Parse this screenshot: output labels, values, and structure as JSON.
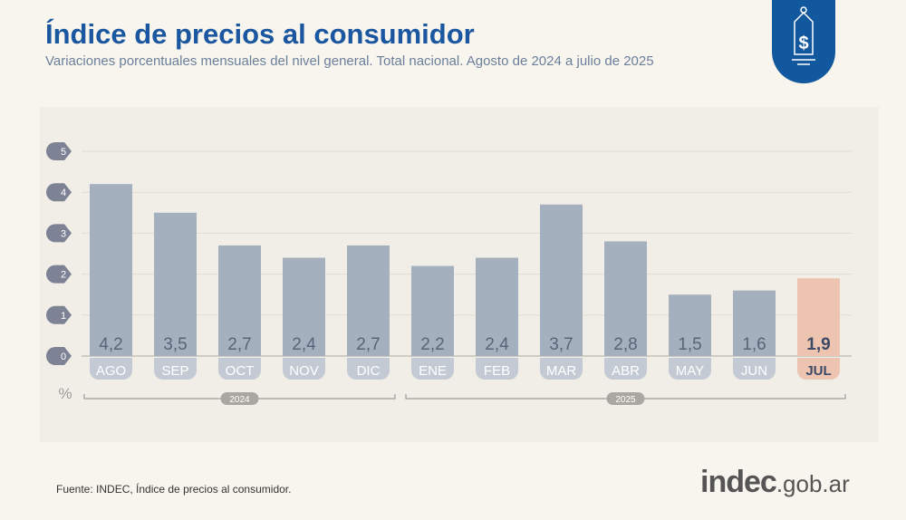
{
  "header": {
    "title": "Índice de precios al consumidor",
    "subtitle": "Variaciones porcentuales mensuales del nivel general. Total nacional. Agosto de 2024 a julio de 2025"
  },
  "footer": {
    "source": "Fuente: INDEC, Índice de precios al consumidor.",
    "brand_main": "indec",
    "brand_suffix": ".gob.ar"
  },
  "logo": {
    "icon": "price-tag-dollar-icon",
    "color": "#12589e"
  },
  "chart_data": {
    "type": "bar",
    "categories": [
      "AGO",
      "SEP",
      "OCT",
      "NOV",
      "DIC",
      "ENE",
      "FEB",
      "MAR",
      "ABR",
      "MAY",
      "JUN",
      "JUL"
    ],
    "values": [
      4.2,
      3.5,
      2.7,
      2.4,
      2.7,
      2.2,
      2.4,
      3.7,
      2.8,
      1.5,
      1.6,
      1.9
    ],
    "labels": [
      "4,2",
      "3,5",
      "2,7",
      "2,4",
      "2,7",
      "2,2",
      "2,4",
      "3,7",
      "2,8",
      "1,5",
      "1,6",
      "1,9"
    ],
    "yticks": [
      "0",
      "1",
      "2",
      "3",
      "4",
      "5"
    ],
    "ylim": [
      0,
      5
    ],
    "ylabel": "%",
    "grid": true,
    "highlight_index": 11,
    "colors": {
      "bar": "#a5b0bf",
      "highlight": "#edc4b0",
      "label": "#5a6478",
      "highlight_label": "#3d4a66"
    },
    "year_groups": [
      {
        "label": "2024",
        "from": 0,
        "to": 4
      },
      {
        "label": "2025",
        "from": 5,
        "to": 11
      }
    ]
  }
}
